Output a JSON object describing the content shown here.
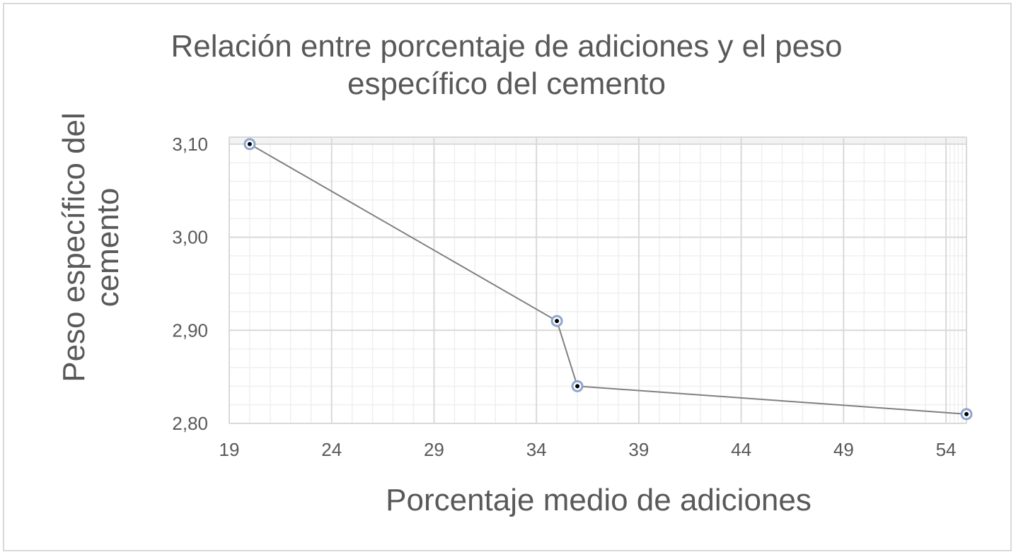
{
  "chart_data": {
    "type": "scatter",
    "title_lines": [
      "Relación entre porcentaje de adiciones y el peso",
      "específico del cemento"
    ],
    "xlabel": "Porcentaje medio de adiciones",
    "ylabel_lines": [
      "Peso específico del",
      "cemento"
    ],
    "xlim": [
      19,
      55
    ],
    "ylim": [
      2.8,
      3.1
    ],
    "x_ticks": [
      19,
      24,
      29,
      34,
      39,
      44,
      49,
      54
    ],
    "x_tick_labels": [
      "19",
      "24",
      "29",
      "34",
      "39",
      "44",
      "49",
      "54"
    ],
    "y_ticks": [
      2.8,
      2.9,
      3.0,
      3.1
    ],
    "y_tick_labels": [
      "2,80",
      "2,90",
      "3,00",
      "3,10"
    ],
    "grid": true,
    "minor_grid": true,
    "series": [
      {
        "x": [
          20,
          35,
          36,
          55
        ],
        "y": [
          3.1,
          2.91,
          2.84,
          2.81
        ],
        "line_color": "#808080",
        "marker_edge_color": "#8ea5cf",
        "marker_fill_color": "#000000"
      }
    ],
    "colors": {
      "grid_major": "#d9d9d9",
      "grid_minor": "#efefef",
      "text": "#595959"
    }
  }
}
